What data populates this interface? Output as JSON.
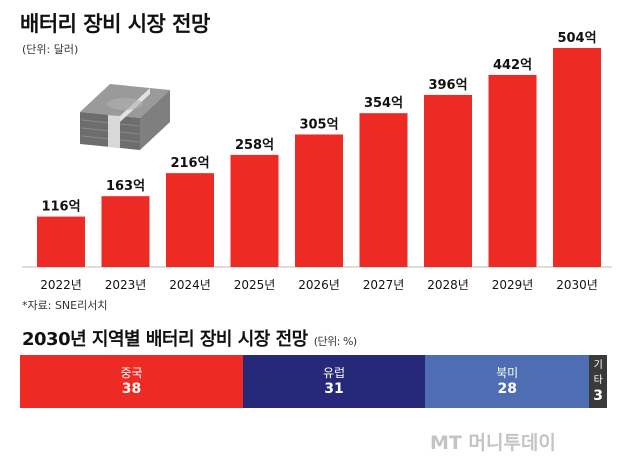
{
  "title": "배터리 장비 시장 전망",
  "unit": "(단위: 달러)",
  "source": "*자료: SNE리서치",
  "region_title": "2030년 지역별 배터리 장비 시장 전망",
  "region_unit": "(단위: %)",
  "watermark": "MT 머니투데이",
  "colors": {
    "bar": "#ee2a24",
    "china": "#ee2a24",
    "europe": "#26297a",
    "north_america": "#4f6db3",
    "other": "#3a3a3a"
  },
  "chart_data": [
    {
      "type": "bar",
      "categories": [
        "2022년",
        "2023년",
        "2024년",
        "2025년",
        "2026년",
        "2027년",
        "2028년",
        "2029년",
        "2030년"
      ],
      "values": [
        116,
        163,
        216,
        258,
        305,
        354,
        396,
        442,
        504
      ],
      "value_labels": [
        "116억",
        "163억",
        "216억",
        "258억",
        "305억",
        "354억",
        "396억",
        "442억",
        "504억"
      ],
      "title": "배터리 장비 시장 전망",
      "xlabel": "",
      "ylabel": "",
      "ylim": [
        0,
        504
      ]
    },
    {
      "type": "bar",
      "orientation": "horizontal-stacked",
      "title": "2030년 지역별 배터리 장비 시장 전망",
      "categories": [
        "중국",
        "유럽",
        "북미",
        "기타"
      ],
      "values": [
        38,
        31,
        28,
        3
      ]
    }
  ]
}
